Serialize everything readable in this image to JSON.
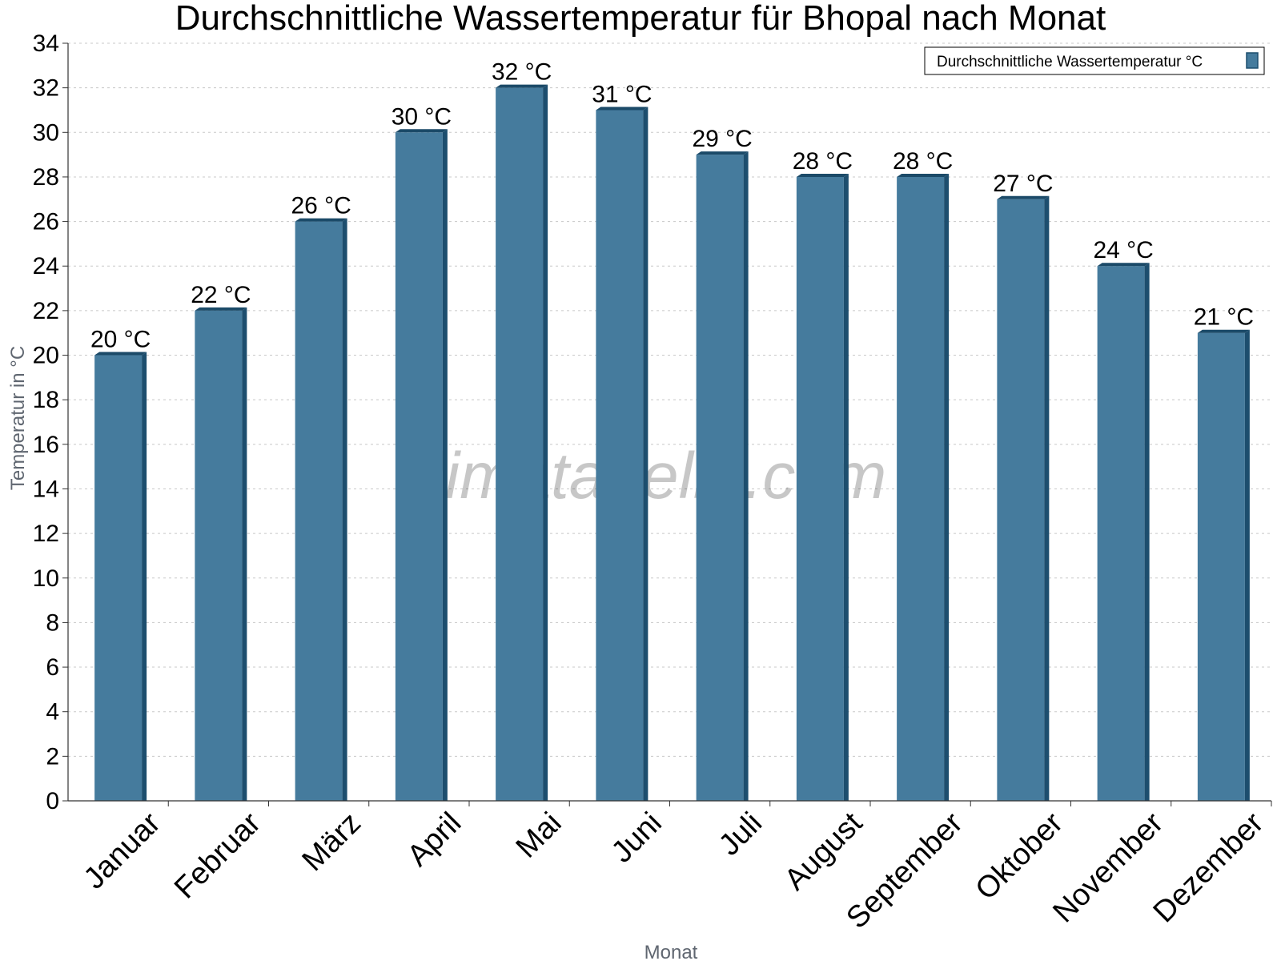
{
  "chart_data": {
    "type": "bar",
    "title": "Durchschnittliche Wassertemperatur für Bhopal nach Monat",
    "xlabel": "Monat",
    "ylabel": "Temperatur in °C",
    "categories": [
      "Januar",
      "Februar",
      "März",
      "April",
      "Mai",
      "Juni",
      "Juli",
      "August",
      "September",
      "Oktober",
      "November",
      "Dezember"
    ],
    "series": [
      {
        "name": "Durchschnittliche Wassertemperatur °C",
        "values": [
          20,
          22,
          26,
          30,
          32,
          31,
          29,
          28,
          28,
          27,
          24,
          21
        ],
        "labels": [
          "20 °C",
          "22 °C",
          "26 °C",
          "30 °C",
          "32 °C",
          "31 °C",
          "29 °C",
          "28 °C",
          "28 °C",
          "27 °C",
          "24 °C",
          "21 °C"
        ]
      }
    ],
    "ylim": [
      0,
      34
    ],
    "yticks": [
      0,
      2,
      4,
      6,
      8,
      10,
      12,
      14,
      16,
      18,
      20,
      22,
      24,
      26,
      28,
      30,
      32,
      34
    ],
    "grid": true,
    "legend": "top-right",
    "watermark": "klimatabelle.com",
    "colors": {
      "bar_face": "#457b9d",
      "bar_side": "#1d4e6e",
      "bar_top": "#1b4a68",
      "grid": "#c8c8c8",
      "axis": "#333333"
    }
  }
}
